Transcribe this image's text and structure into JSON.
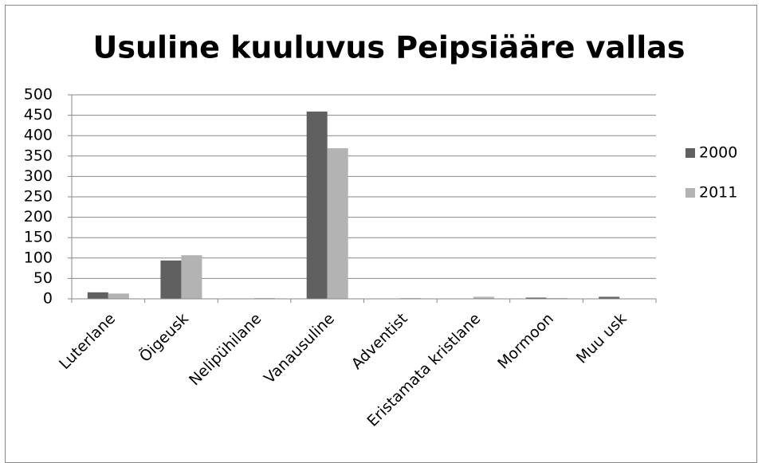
{
  "chart_data": {
    "type": "bar",
    "title": "Usuline kuuluvus Peipsiääre vallas",
    "categories": [
      "Luterlane",
      "Õigeusk",
      "Nelipühilane",
      "Vanausuline",
      "Adventist",
      "Eristamata kristlane",
      "Mormoon",
      "Muu usk"
    ],
    "series": [
      {
        "name": "2000",
        "color": "#606060",
        "values": [
          16,
          94,
          0,
          459,
          0,
          0,
          3,
          5
        ]
      },
      {
        "name": "2011",
        "color": "#b3b3b3",
        "values": [
          13,
          107,
          2,
          369,
          2,
          5,
          2,
          0
        ]
      }
    ],
    "ylim": [
      0,
      500
    ],
    "yticks": [
      0,
      50,
      100,
      150,
      200,
      250,
      300,
      350,
      400,
      450,
      500
    ],
    "grid": true,
    "legend": "right"
  }
}
